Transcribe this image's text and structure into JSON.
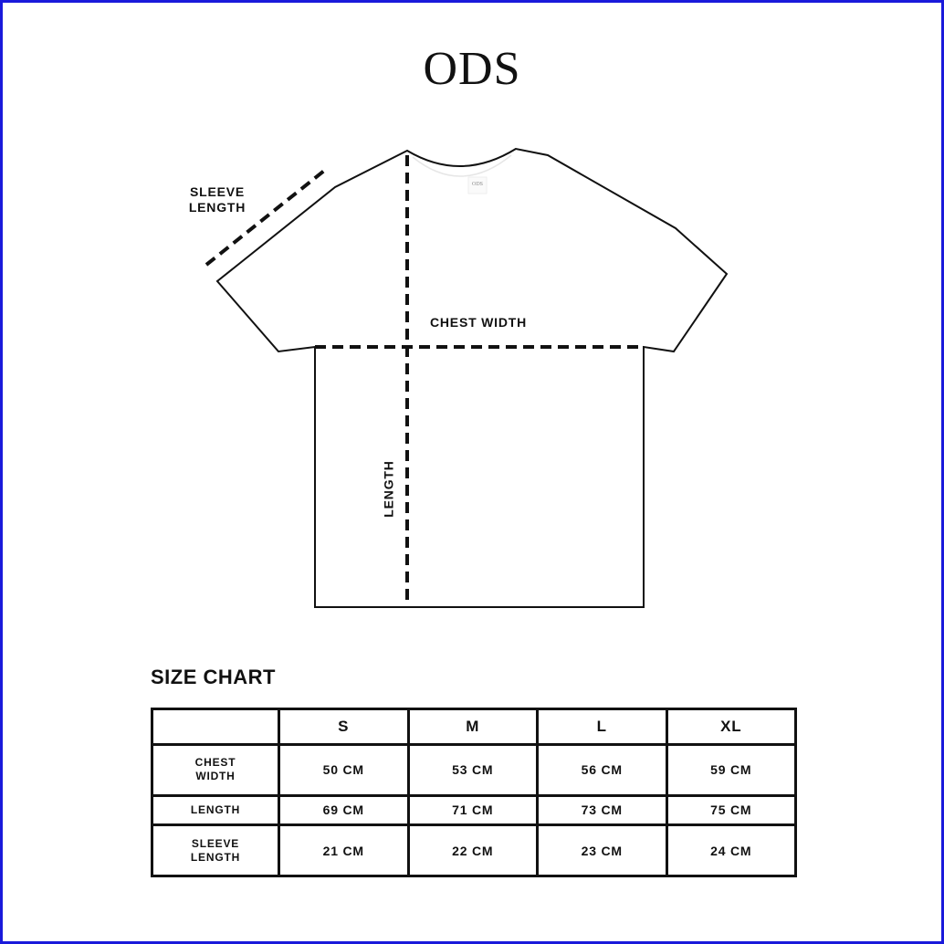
{
  "brand": "ODS",
  "colors": {
    "border": "#1a1adb",
    "ink": "#111111"
  },
  "diagram": {
    "sleeve_label": [
      "SLEEVE",
      "LENGTH"
    ],
    "chest_label": "CHEST WIDTH",
    "length_label": "LENGTH",
    "neck_tag": "ODS"
  },
  "size_chart": {
    "title": "SIZE CHART",
    "sizes": [
      "S",
      "M",
      "L",
      "XL"
    ],
    "rows": [
      {
        "label": [
          "CHEST",
          "WIDTH"
        ],
        "values": [
          "50 CM",
          "53 CM",
          "56 CM",
          "59 CM"
        ]
      },
      {
        "label": [
          "LENGTH"
        ],
        "values": [
          "69 CM",
          "71 CM",
          "73 CM",
          "75 CM"
        ]
      },
      {
        "label": [
          "SLEEVE",
          "LENGTH"
        ],
        "values": [
          "21 CM",
          "22 CM",
          "23 CM",
          "24 CM"
        ]
      }
    ]
  }
}
